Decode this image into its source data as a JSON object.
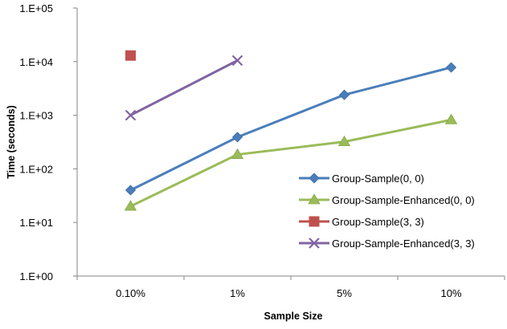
{
  "chart_data": {
    "type": "line",
    "title": "",
    "xlabel": "Sample Size",
    "ylabel": "Time (seconds)",
    "yscale": "log",
    "ylim": [
      1,
      100000
    ],
    "y_ticks": [
      1,
      10,
      100,
      1000,
      10000,
      100000
    ],
    "y_tick_labels": [
      "1.E+00",
      "1.E+01",
      "1.E+02",
      "1.E+03",
      "1.E+04",
      "1.E+05"
    ],
    "categories": [
      "0.10%",
      "1%",
      "5%",
      "10%"
    ],
    "grid": false,
    "legend_position": "right",
    "series": [
      {
        "name": "Group-Sample(0, 0)",
        "values": [
          40,
          390,
          2400,
          7800
        ],
        "color": "#4a7ebb",
        "marker": "diamond"
      },
      {
        "name": "Group-Sample-Enhanced(0, 0)",
        "values": [
          20,
          185,
          320,
          820
        ],
        "color": "#9bbb59",
        "marker": "triangle"
      },
      {
        "name": "Group-Sample(3, 3)",
        "values": [
          13000,
          null,
          null,
          null
        ],
        "color": "#c0504d",
        "marker": "square"
      },
      {
        "name": "Group-Sample-Enhanced(3, 3)",
        "values": [
          1000,
          10500,
          null,
          null
        ],
        "color": "#8064a2",
        "marker": "x"
      }
    ]
  }
}
